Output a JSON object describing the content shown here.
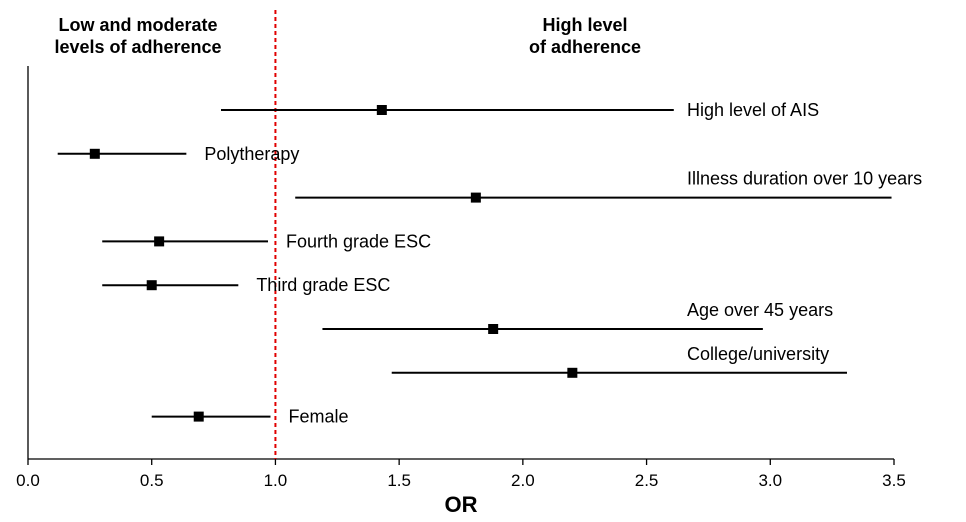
{
  "chart_data": {
    "type": "forest",
    "xlabel": "OR",
    "xlim": [
      0.0,
      3.5
    ],
    "xticks": [
      "0.0",
      "0.5",
      "1.0",
      "1.5",
      "2.0",
      "2.5",
      "3.0",
      "3.5"
    ],
    "reference_line": {
      "x": 1.0,
      "color": "#e00000",
      "style": "dashed"
    },
    "region_labels": {
      "left_line1": "Low and moderate",
      "left_line2": "levels of adherence",
      "right_line1": "High level",
      "right_line2": "of adherence"
    },
    "rows": [
      {
        "label": "High level of AIS",
        "or": 1.43,
        "low": 0.78,
        "high": 2.61,
        "label_position": "right"
      },
      {
        "label": "Polytherapy",
        "or": 0.27,
        "low": 0.12,
        "high": 0.64,
        "label_position": "right"
      },
      {
        "label": "Illness duration over 10 years",
        "or": 1.81,
        "low": 1.08,
        "high": 3.49,
        "label_position": "above"
      },
      {
        "label": "Fourth grade ESC",
        "or": 0.53,
        "low": 0.3,
        "high": 0.97,
        "label_position": "right"
      },
      {
        "label": "Third grade ESC",
        "or": 0.5,
        "low": 0.3,
        "high": 0.85,
        "label_position": "right"
      },
      {
        "label": "Age over 45 years",
        "or": 1.88,
        "low": 1.19,
        "high": 2.97,
        "label_position": "above"
      },
      {
        "label": "College/university",
        "or": 2.2,
        "low": 1.47,
        "high": 3.31,
        "label_position": "above"
      },
      {
        "label": "Female",
        "or": 0.69,
        "low": 0.5,
        "high": 0.98,
        "label_position": "right"
      }
    ],
    "grid": false,
    "colors": {
      "marks": "#000000",
      "reference": "#e00000"
    }
  }
}
